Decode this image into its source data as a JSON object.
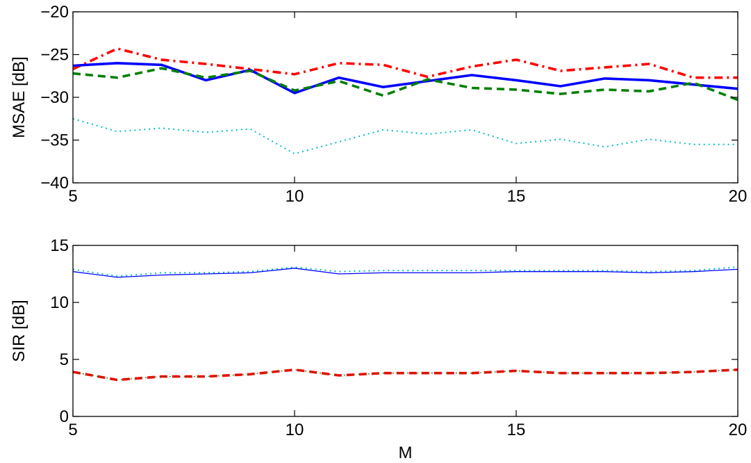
{
  "chart_data": [
    {
      "type": "line",
      "title": "",
      "xlabel": "",
      "ylabel": "MSAE [dB]",
      "xlim": [
        5,
        20
      ],
      "ylim": [
        -40,
        -20
      ],
      "xticks": [
        5,
        10,
        15,
        20
      ],
      "yticks": [
        -40,
        -35,
        -30,
        -25,
        -20
      ],
      "grid": false,
      "x": [
        5,
        6,
        7,
        8,
        9,
        10,
        11,
        12,
        13,
        14,
        15,
        16,
        17,
        18,
        19,
        20
      ],
      "series": [
        {
          "color": "#ff0000",
          "dash": "dashdot",
          "width": "thick",
          "values": [
            -26.7,
            -24.3,
            -25.6,
            -26.1,
            -26.7,
            -27.3,
            -26.0,
            -26.2,
            -27.6,
            -26.4,
            -25.6,
            -26.9,
            -26.5,
            -26.1,
            -27.7,
            -27.7
          ]
        },
        {
          "color": "#0000ff",
          "dash": "solid",
          "width": "thick",
          "values": [
            -26.3,
            -26.0,
            -26.2,
            -28.0,
            -26.8,
            -29.5,
            -27.7,
            -28.8,
            -28.1,
            -27.4,
            -28.0,
            -28.7,
            -27.8,
            -28.0,
            -28.5,
            -29.0
          ]
        },
        {
          "color": "#008000",
          "dash": "dashed",
          "width": "thick",
          "values": [
            -27.2,
            -27.7,
            -26.6,
            -27.7,
            -26.9,
            -29.2,
            -28.1,
            -29.8,
            -27.9,
            -28.9,
            -29.1,
            -29.6,
            -29.1,
            -29.3,
            -28.3,
            -30.3
          ]
        },
        {
          "color": "#00bfbf",
          "dash": "dotted",
          "width": "normal",
          "values": [
            -32.5,
            -34.0,
            -33.6,
            -34.1,
            -33.7,
            -36.6,
            -35.2,
            -33.8,
            -34.3,
            -33.8,
            -35.4,
            -34.9,
            -35.8,
            -34.9,
            -35.5,
            -35.5
          ]
        }
      ]
    },
    {
      "type": "line",
      "title": "",
      "xlabel": "M",
      "ylabel": "SIR [dB]",
      "xlim": [
        5,
        20
      ],
      "ylim": [
        0,
        15
      ],
      "xticks": [
        5,
        10,
        15,
        20
      ],
      "yticks": [
        0,
        5,
        10,
        15
      ],
      "grid": false,
      "x": [
        5,
        6,
        7,
        8,
        9,
        10,
        11,
        12,
        13,
        14,
        15,
        16,
        17,
        18,
        19,
        20
      ],
      "series": [
        {
          "color": "#00bfbf",
          "dash": "dotted",
          "width": "normal",
          "values": [
            12.9,
            12.3,
            12.6,
            12.6,
            12.7,
            13.1,
            12.7,
            12.8,
            12.8,
            12.8,
            12.8,
            12.8,
            12.8,
            12.7,
            12.8,
            13.1
          ]
        },
        {
          "color": "#0000ff",
          "dash": "solid",
          "width": "thin",
          "values": [
            12.7,
            12.2,
            12.4,
            12.5,
            12.6,
            13.0,
            12.5,
            12.6,
            12.6,
            12.6,
            12.7,
            12.7,
            12.7,
            12.6,
            12.7,
            12.9
          ]
        },
        {
          "color": "#ff0000",
          "dash": "dashed",
          "width": "thick",
          "values": [
            3.9,
            3.2,
            3.5,
            3.5,
            3.7,
            4.1,
            3.6,
            3.8,
            3.8,
            3.8,
            4.0,
            3.8,
            3.8,
            3.8,
            3.9,
            4.1
          ]
        },
        {
          "color": "#008000",
          "dash": "dotted",
          "width": "thin",
          "values": [
            3.9,
            3.2,
            3.5,
            3.5,
            3.7,
            4.1,
            3.6,
            3.8,
            3.8,
            3.8,
            4.0,
            3.8,
            3.8,
            3.8,
            3.9,
            4.1
          ]
        }
      ]
    }
  ]
}
